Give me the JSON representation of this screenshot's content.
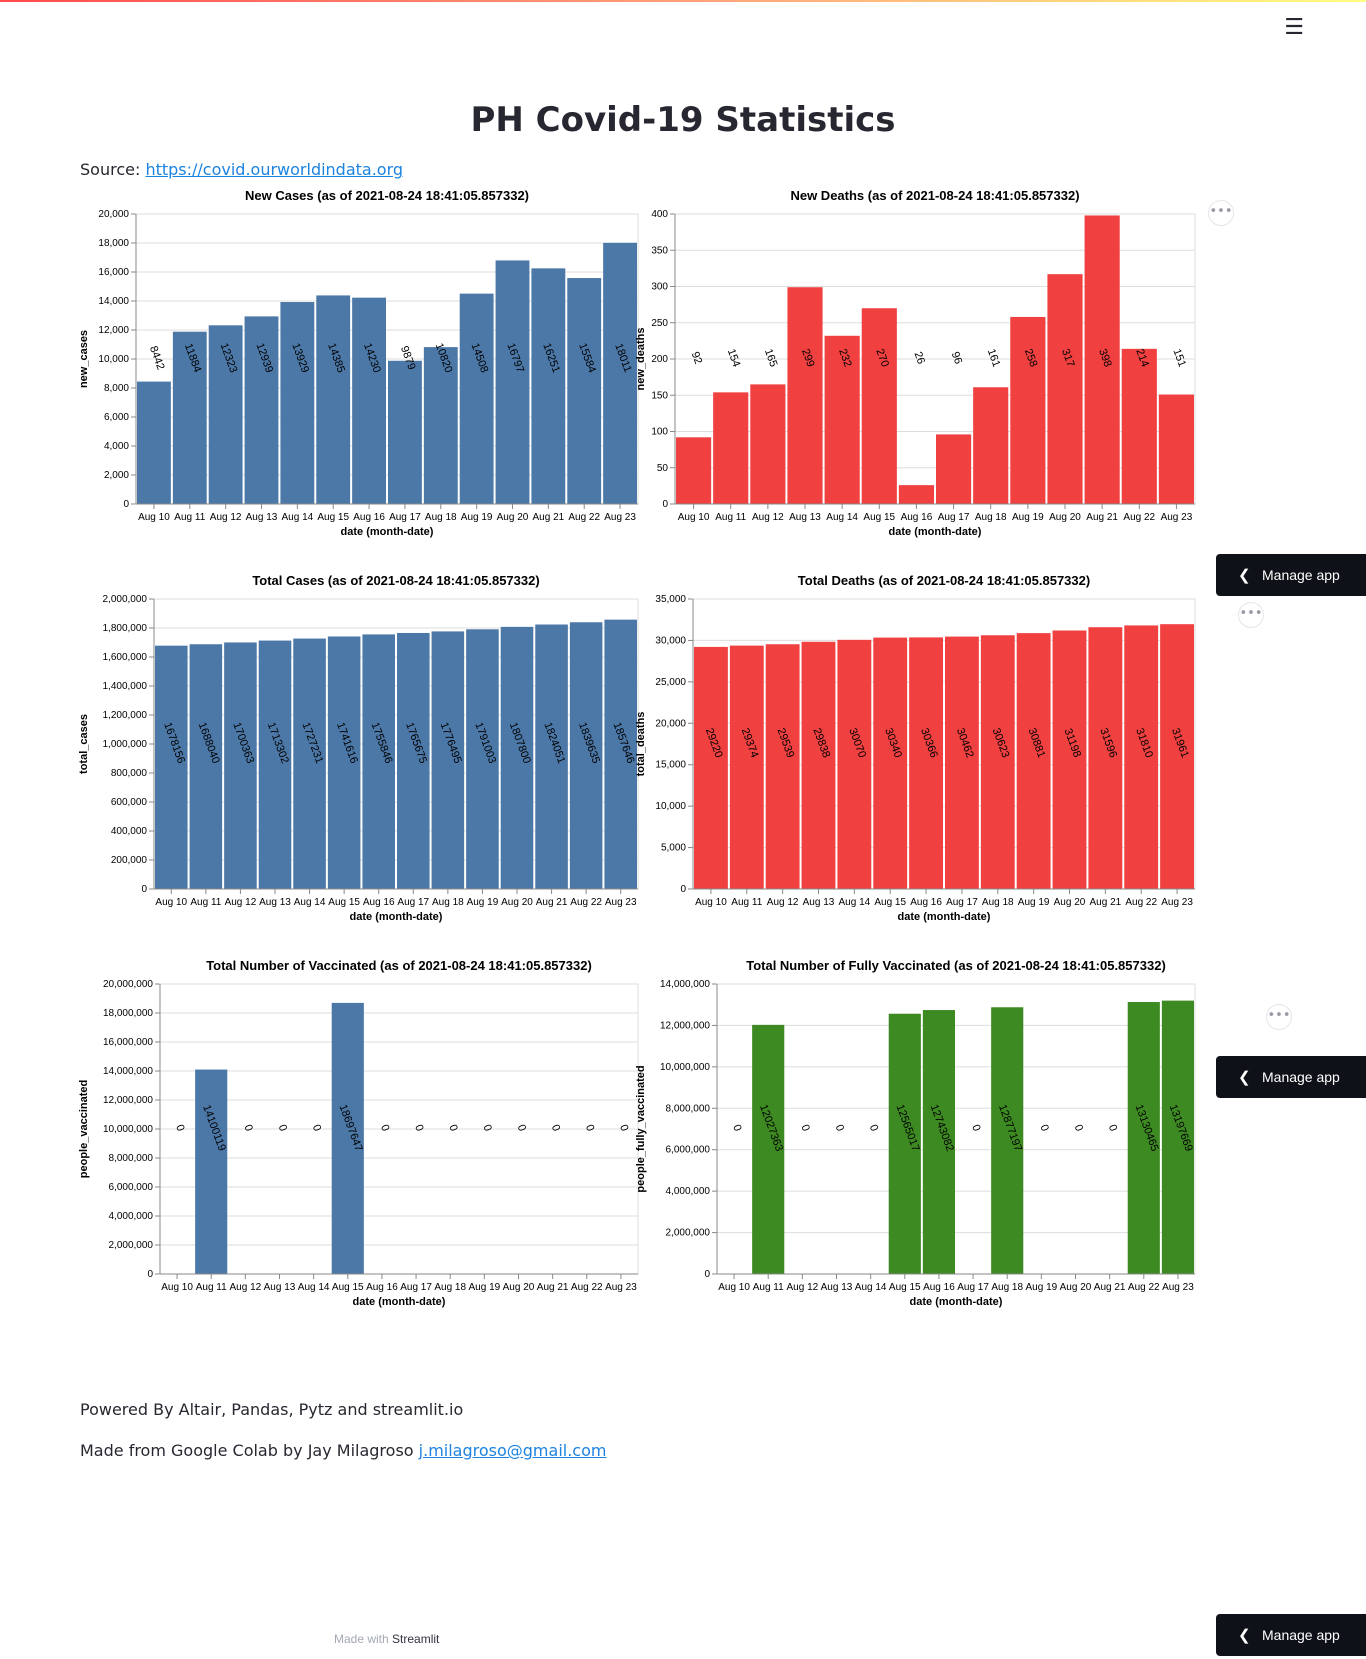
{
  "header": {
    "menu_icon": "hamburger-icon",
    "menu_glyph": "☰"
  },
  "page": {
    "title": "PH Covid-19 Statistics",
    "source_label": "Source: ",
    "source_link": "https://covid.ourworldindata.org",
    "powered_by": "Powered By Altair, Pandas, Pytz and streamlit.io",
    "made_from": "Made from Google Colab by Jay Milagroso ",
    "email": "j.milagroso@gmail.com"
  },
  "footer": {
    "made_with": "Made with ",
    "streamlit": "Streamlit"
  },
  "manage_app": {
    "label": "Manage app",
    "chevron": "❮"
  },
  "more_glyph": "•••",
  "colors": {
    "blue": "#4c78a8",
    "red": "#f04040",
    "green": "#3e8a22"
  },
  "chart_data": [
    {
      "type": "bar",
      "title": "New Cases (as of 2021-08-24 18:41:05.857332)",
      "xlabel": "date (month-date)",
      "ylabel": "new_cases",
      "categories": [
        "Aug 10",
        "Aug 11",
        "Aug 12",
        "Aug 13",
        "Aug 14",
        "Aug 15",
        "Aug 16",
        "Aug 17",
        "Aug 18",
        "Aug 19",
        "Aug 20",
        "Aug 21",
        "Aug 22",
        "Aug 23"
      ],
      "values": [
        8442,
        11884,
        12323,
        12939,
        13929,
        14385,
        14230,
        9879,
        10820,
        14508,
        16797,
        16251,
        15584,
        18011
      ],
      "ylim": [
        0,
        20000
      ],
      "yticks": [
        0,
        2000,
        4000,
        6000,
        8000,
        10000,
        12000,
        14000,
        16000,
        18000,
        20000
      ],
      "color": "blue",
      "grid": true
    },
    {
      "type": "bar",
      "title": "New Deaths (as of 2021-08-24 18:41:05.857332)",
      "xlabel": "date (month-date)",
      "ylabel": "new_deaths",
      "categories": [
        "Aug 10",
        "Aug 11",
        "Aug 12",
        "Aug 13",
        "Aug 14",
        "Aug 15",
        "Aug 16",
        "Aug 17",
        "Aug 18",
        "Aug 19",
        "Aug 20",
        "Aug 21",
        "Aug 22",
        "Aug 23"
      ],
      "values": [
        92,
        154,
        165,
        299,
        232,
        270,
        26,
        96,
        161,
        258,
        317,
        398,
        214,
        151
      ],
      "ylim": [
        0,
        400
      ],
      "yticks": [
        0,
        50,
        100,
        150,
        200,
        250,
        300,
        350,
        400
      ],
      "color": "red",
      "grid": true
    },
    {
      "type": "bar",
      "title": "Total Cases (as of 2021-08-24 18:41:05.857332)",
      "xlabel": "date (month-date)",
      "ylabel": "total_cases",
      "categories": [
        "Aug 10",
        "Aug 11",
        "Aug 12",
        "Aug 13",
        "Aug 14",
        "Aug 15",
        "Aug 16",
        "Aug 17",
        "Aug 18",
        "Aug 19",
        "Aug 20",
        "Aug 21",
        "Aug 22",
        "Aug 23"
      ],
      "values": [
        1678156,
        1688040,
        1700363,
        1713302,
        1727231,
        1741616,
        1755846,
        1765675,
        1776495,
        1791003,
        1807800,
        1824051,
        1839635,
        1857646
      ],
      "ylim": [
        0,
        2000000
      ],
      "yticks": [
        0,
        200000,
        400000,
        600000,
        800000,
        1000000,
        1200000,
        1400000,
        1600000,
        1800000,
        2000000
      ],
      "color": "blue",
      "grid": true
    },
    {
      "type": "bar",
      "title": "Total Deaths (as of 2021-08-24 18:41:05.857332)",
      "xlabel": "date (month-date)",
      "ylabel": "total_deaths",
      "categories": [
        "Aug 10",
        "Aug 11",
        "Aug 12",
        "Aug 13",
        "Aug 14",
        "Aug 15",
        "Aug 16",
        "Aug 17",
        "Aug 18",
        "Aug 19",
        "Aug 20",
        "Aug 21",
        "Aug 22",
        "Aug 23"
      ],
      "values": [
        29220,
        29374,
        29539,
        29838,
        30070,
        30340,
        30366,
        30462,
        30623,
        30881,
        31198,
        31596,
        31810,
        31961
      ],
      "ylim": [
        0,
        35000
      ],
      "yticks": [
        0,
        5000,
        10000,
        15000,
        20000,
        25000,
        30000,
        35000
      ],
      "color": "red",
      "grid": true
    },
    {
      "type": "bar",
      "title": "Total Number of Vaccinated (as of 2021-08-24 18:41:05.857332)",
      "xlabel": "date (month-date)",
      "ylabel": "people_vaccinated",
      "categories": [
        "Aug 10",
        "Aug 11",
        "Aug 12",
        "Aug 13",
        "Aug 14",
        "Aug 15",
        "Aug 16",
        "Aug 17",
        "Aug 18",
        "Aug 19",
        "Aug 20",
        "Aug 21",
        "Aug 22",
        "Aug 23"
      ],
      "values": [
        0,
        14100119,
        0,
        0,
        0,
        18697647,
        0,
        0,
        0,
        0,
        0,
        0,
        0,
        0
      ],
      "ylim": [
        0,
        20000000
      ],
      "yticks": [
        0,
        2000000,
        4000000,
        6000000,
        8000000,
        10000000,
        12000000,
        14000000,
        16000000,
        18000000,
        20000000
      ],
      "color": "blue",
      "grid": true
    },
    {
      "type": "bar",
      "title": "Total Number of Fully Vaccinated (as of 2021-08-24 18:41:05.857332)",
      "xlabel": "date (month-date)",
      "ylabel": "people_fully_vaccinated",
      "categories": [
        "Aug 10",
        "Aug 11",
        "Aug 12",
        "Aug 13",
        "Aug 14",
        "Aug 15",
        "Aug 16",
        "Aug 17",
        "Aug 18",
        "Aug 19",
        "Aug 20",
        "Aug 21",
        "Aug 22",
        "Aug 23"
      ],
      "values": [
        0,
        12027363,
        0,
        0,
        0,
        12565017,
        12743082,
        0,
        12877197,
        0,
        0,
        0,
        13130465,
        13197669
      ],
      "ylim": [
        0,
        14000000
      ],
      "yticks": [
        0,
        2000000,
        4000000,
        6000000,
        8000000,
        10000000,
        12000000,
        14000000
      ],
      "color": "green",
      "grid": true
    }
  ]
}
